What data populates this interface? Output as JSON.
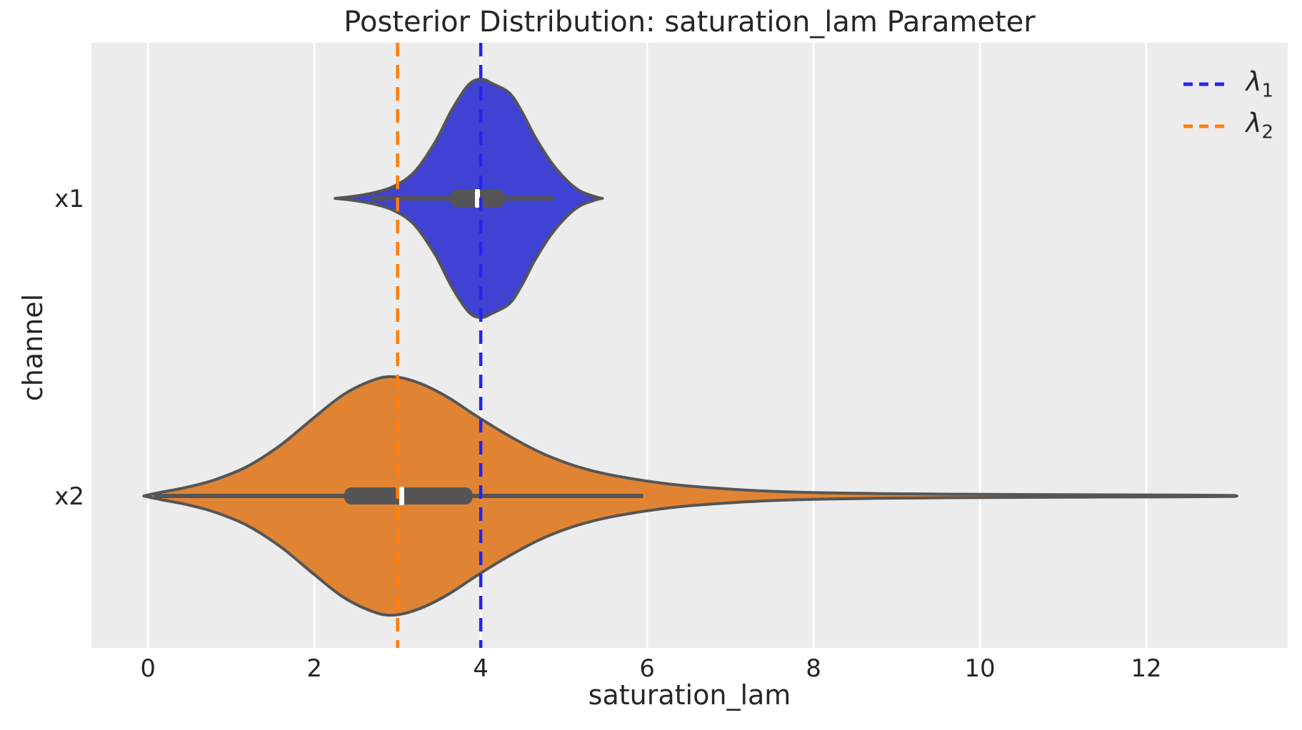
{
  "figure": {
    "title": "Posterior Distribution: saturation_lam Parameter"
  },
  "chart_data": {
    "type": "violin",
    "orientation": "horizontal",
    "title": "Posterior Distribution: saturation_lam Parameter",
    "xlabel": "saturation_lam",
    "ylabel": "channel",
    "categories": [
      "x1",
      "x2"
    ],
    "x_ticks": [
      0,
      2,
      4,
      6,
      8,
      10,
      12
    ],
    "xlim": [
      -0.68,
      13.7
    ],
    "grid": "vertical white gridlines on light grey axes background",
    "legend_position": "upper right",
    "series": [
      {
        "name": "x1",
        "fill_color": "#4042d3",
        "edge_color": "#555555",
        "kde_support": [
          2.25,
          5.45
        ],
        "kde": [
          [
            2.25,
            0
          ],
          [
            2.45,
            0.015
          ],
          [
            2.7,
            0.045
          ],
          [
            2.95,
            0.1
          ],
          [
            3.2,
            0.22
          ],
          [
            3.45,
            0.47
          ],
          [
            3.65,
            0.74
          ],
          [
            3.85,
            0.95
          ],
          [
            4.0,
            1.0
          ],
          [
            4.15,
            0.96
          ],
          [
            4.35,
            0.88
          ],
          [
            4.5,
            0.72
          ],
          [
            4.65,
            0.52
          ],
          [
            4.85,
            0.3
          ],
          [
            5.05,
            0.14
          ],
          [
            5.2,
            0.06
          ],
          [
            5.35,
            0.02
          ],
          [
            5.45,
            0
          ]
        ],
        "box": {
          "whisker_lo": 2.7,
          "q1": 3.63,
          "median": 3.96,
          "q3": 4.29,
          "whisker_hi": 4.86
        }
      },
      {
        "name": "x2",
        "fill_color": "#e08433",
        "edge_color": "#555555",
        "kde_support": [
          -0.05,
          13.08
        ],
        "kde": [
          [
            -0.05,
            0
          ],
          [
            0.15,
            0.03
          ],
          [
            0.45,
            0.07
          ],
          [
            0.8,
            0.135
          ],
          [
            1.2,
            0.25
          ],
          [
            1.6,
            0.43
          ],
          [
            2.0,
            0.66
          ],
          [
            2.35,
            0.85
          ],
          [
            2.7,
            0.97
          ],
          [
            2.95,
            1.0
          ],
          [
            3.25,
            0.95
          ],
          [
            3.6,
            0.83
          ],
          [
            3.95,
            0.67
          ],
          [
            4.3,
            0.52
          ],
          [
            4.7,
            0.37
          ],
          [
            5.1,
            0.26
          ],
          [
            5.5,
            0.185
          ],
          [
            5.95,
            0.13
          ],
          [
            6.4,
            0.09
          ],
          [
            6.9,
            0.062
          ],
          [
            7.4,
            0.042
          ],
          [
            8.0,
            0.028
          ],
          [
            8.8,
            0.02
          ],
          [
            9.6,
            0.015
          ],
          [
            10.5,
            0.012
          ],
          [
            11.5,
            0.009
          ],
          [
            12.4,
            0.007
          ],
          [
            13.0,
            0.005
          ],
          [
            13.08,
            0
          ]
        ],
        "box": {
          "whisker_lo": 0.1,
          "q1": 2.36,
          "median": 3.05,
          "q3": 3.9,
          "whisker_hi": 5.93
        }
      }
    ],
    "vlines": [
      {
        "label": "lambda_1",
        "value": 4,
        "color": "#2525f0",
        "style": "dashed"
      },
      {
        "label": "lambda_2",
        "value": 3,
        "color": "#ff7f0e",
        "style": "dashed"
      }
    ],
    "legend": [
      {
        "base": "λ",
        "sub": "1",
        "color": "#2525f0"
      },
      {
        "base": "λ",
        "sub": "2",
        "color": "#ff7f0e"
      }
    ]
  },
  "style_colors": {
    "axes_background": "#ececec",
    "gridline": "#ffffff",
    "inner_box": "#555555",
    "median_tick": "#ffffff",
    "text": "#262626"
  }
}
